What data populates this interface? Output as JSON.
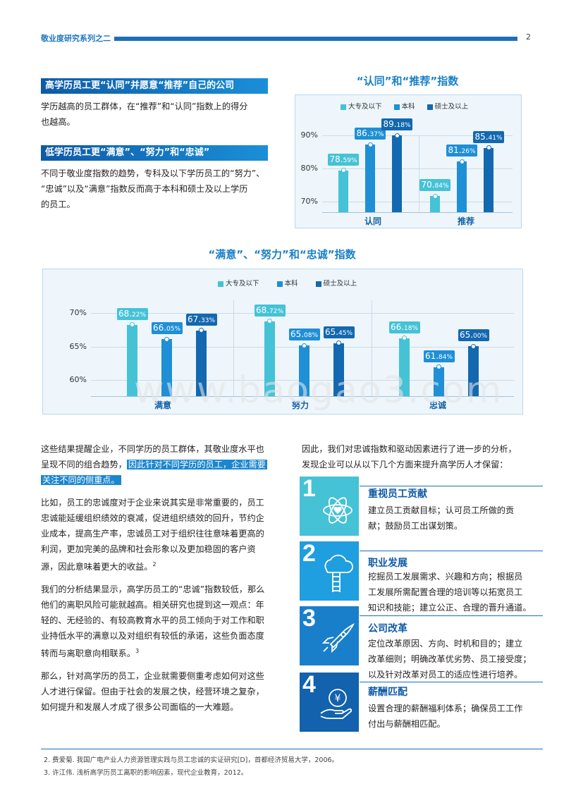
{
  "header": {
    "series_title": "敬业度研究系列之二",
    "page_number": "2"
  },
  "section1": {
    "heading": "高学历员工更“认同”并愿意“推荐”自己的公司",
    "lines": [
      "学历越高的员工群体，在“推荐”和“认同”指数上的得分",
      "也越高。"
    ]
  },
  "section2": {
    "heading": "低学历员工更“满意”、“努力”和“忠诚”",
    "lines": [
      "不同于敬业度指数的趋势，专科及以下学历员工的“努力”、",
      "“忠诚”以及“满意”指数反而高于本科和硕士及以上学历",
      "的员工。"
    ]
  },
  "chart1": {
    "title": "“认同”和“推荐”指数",
    "legend": [
      "大专及以下",
      "本科",
      "硕士及以上"
    ],
    "yticks": [
      "90%",
      "80%",
      "70%"
    ],
    "labels": [
      {
        "int": "78.",
        "dec": "59%"
      },
      {
        "int": "86.",
        "dec": "37%"
      },
      {
        "int": "89.",
        "dec": "18%"
      },
      {
        "int": "70.",
        "dec": "84%"
      },
      {
        "int": "81.",
        "dec": "26%"
      },
      {
        "int": "85.",
        "dec": "41%"
      }
    ],
    "categories": [
      "认同",
      "推荐"
    ]
  },
  "chart2": {
    "title": "“满意”、“努力”和“忠诚”指数",
    "legend": [
      "大专及以下",
      "本科",
      "硕士及以上"
    ],
    "yticks": [
      "70%",
      "65%",
      "60%"
    ],
    "labels": [
      {
        "int": "68.",
        "dec": "22%"
      },
      {
        "int": "66.",
        "dec": "05%"
      },
      {
        "int": "67.",
        "dec": "33%"
      },
      {
        "int": "68.",
        "dec": "72%"
      },
      {
        "int": "65.",
        "dec": "08%"
      },
      {
        "int": "65.",
        "dec": "45%"
      },
      {
        "int": "66.",
        "dec": "18%"
      },
      {
        "int": "61.",
        "dec": "84%"
      },
      {
        "int": "65.",
        "dec": "00%"
      }
    ],
    "categories": [
      "满意",
      "努力",
      "忠诚"
    ]
  },
  "chart_data": [
    {
      "type": "bar",
      "title": "“认同”和“推荐”指数",
      "categories": [
        "认同",
        "推荐"
      ],
      "series": [
        {
          "name": "大专及以下",
          "values": [
            78.59,
            70.84
          ]
        },
        {
          "name": "本科",
          "values": [
            86.37,
            81.26
          ]
        },
        {
          "name": "硕士及以上",
          "values": [
            89.18,
            85.41
          ]
        }
      ],
      "ylim": [
        66,
        96
      ],
      "colors": [
        "#45c2d6",
        "#1f8fd6",
        "#1368b0"
      ]
    },
    {
      "type": "bar",
      "title": "“满意”、“努力”和“忠诚”指数",
      "categories": [
        "满意",
        "努力",
        "忠诚"
      ],
      "series": [
        {
          "name": "大专及以下",
          "values": [
            68.22,
            68.72,
            66.18
          ]
        },
        {
          "name": "本科",
          "values": [
            66.05,
            65.08,
            61.84
          ]
        },
        {
          "name": "硕士及以上",
          "values": [
            67.33,
            65.45,
            65.0
          ]
        }
      ],
      "ylim": [
        57.5,
        72.5
      ],
      "colors": [
        "#45c2d6",
        "#1f8fd6",
        "#1368b0"
      ]
    }
  ],
  "left_col": {
    "p1_lines": [
      "这些结果提醒企业，不同学历的员工群体，其敬业度水平也",
      "呈现不同的组合趋势，"
    ],
    "p1_highlight": [
      "因此针对不同学历的员工，企业需要",
      "关注不同的侧重点。"
    ],
    "p2_lines": [
      "比如，员工的忠诚度对于企业来说其实是非常重要的，员工",
      "忠诚能延缓组织绩效的衰减，促进组织绩效的回升，节约企",
      "业成本，提高生产率，忠诚员工对于组织往往意味着更高的",
      "利润，更加完美的品牌和社会形象以及更加稳固的客户资",
      "源，因此意味着更大的收益。"
    ],
    "p2_sup": "2",
    "p3_lines": [
      "我们的分析结果显示，高学历员工的“忠诚”指数较低，那么",
      "他们的离职风险可能就越高。相关研究也提到这一观点：年",
      "轻的、无经验的、有较高教育水平的员工倾向于对工作和职",
      "业持低水平的满意以及对组织有较低的承诺，这些负面态度",
      "转而与离职意向相联系。"
    ],
    "p3_sup": "3",
    "p4_lines": [
      "那么，针对高学历的员工，企业就需要侧重考虑如何对这些",
      "人才进行保留。但由于社会的发展之快，经营环境之复杂，",
      "如何提升和发展人才成了很多公司面临的一大难题。"
    ]
  },
  "right_col": {
    "intro_lines": [
      "因此，我们对忠诚指数和驱动因素进行了进一步的分析，",
      "发现企业可以从以下几个方面来提升高学历人才保留："
    ],
    "items": [
      {
        "num": "1",
        "title": "重视员工贡献",
        "lines": [
          "建立员工贡献目标；认可员工所做的贡",
          "献；鼓励员工出谋划策。"
        ],
        "icon": "atom-heart-icon",
        "color": "#45c2d6"
      },
      {
        "num": "2",
        "title": "职业发展",
        "lines": [
          "挖掘员工发展需求、兴趣和方向；根据员",
          "工发展所需配置合理的培训等以拓宽员工",
          "知识和技能；建立公正、合理的晋升通道。"
        ],
        "icon": "cloud-ladder-icon",
        "color": "#1f9ee0"
      },
      {
        "num": "3",
        "title": "公司改革",
        "lines": [
          "定位改革原因、方向、时机和目的；建立",
          "改革细则；明确改革优劣势、员工接受度；",
          "以及针对改革对员工的适应性进行培养。"
        ],
        "icon": "rocket-icon",
        "color": "#1a7fcb"
      },
      {
        "num": "4",
        "title": "薪酬匹配",
        "lines": [
          "设置合理的薪酬福利体系；确保员工工作",
          "付出与薪酬相匹配。"
        ],
        "icon": "yen-hand-icon",
        "color": "#1262ad"
      }
    ]
  },
  "footnotes": [
    "2. 费爱菊. 我国广电产业人力资源管理实践与员工忠诚的实证研究[D]，首都经济贸易大学，2006。",
    "3. 许江伟. 浅析高学历员工离职的影响因素，现代企业教育，2012。"
  ],
  "watermark": "www.baogao3.com"
}
